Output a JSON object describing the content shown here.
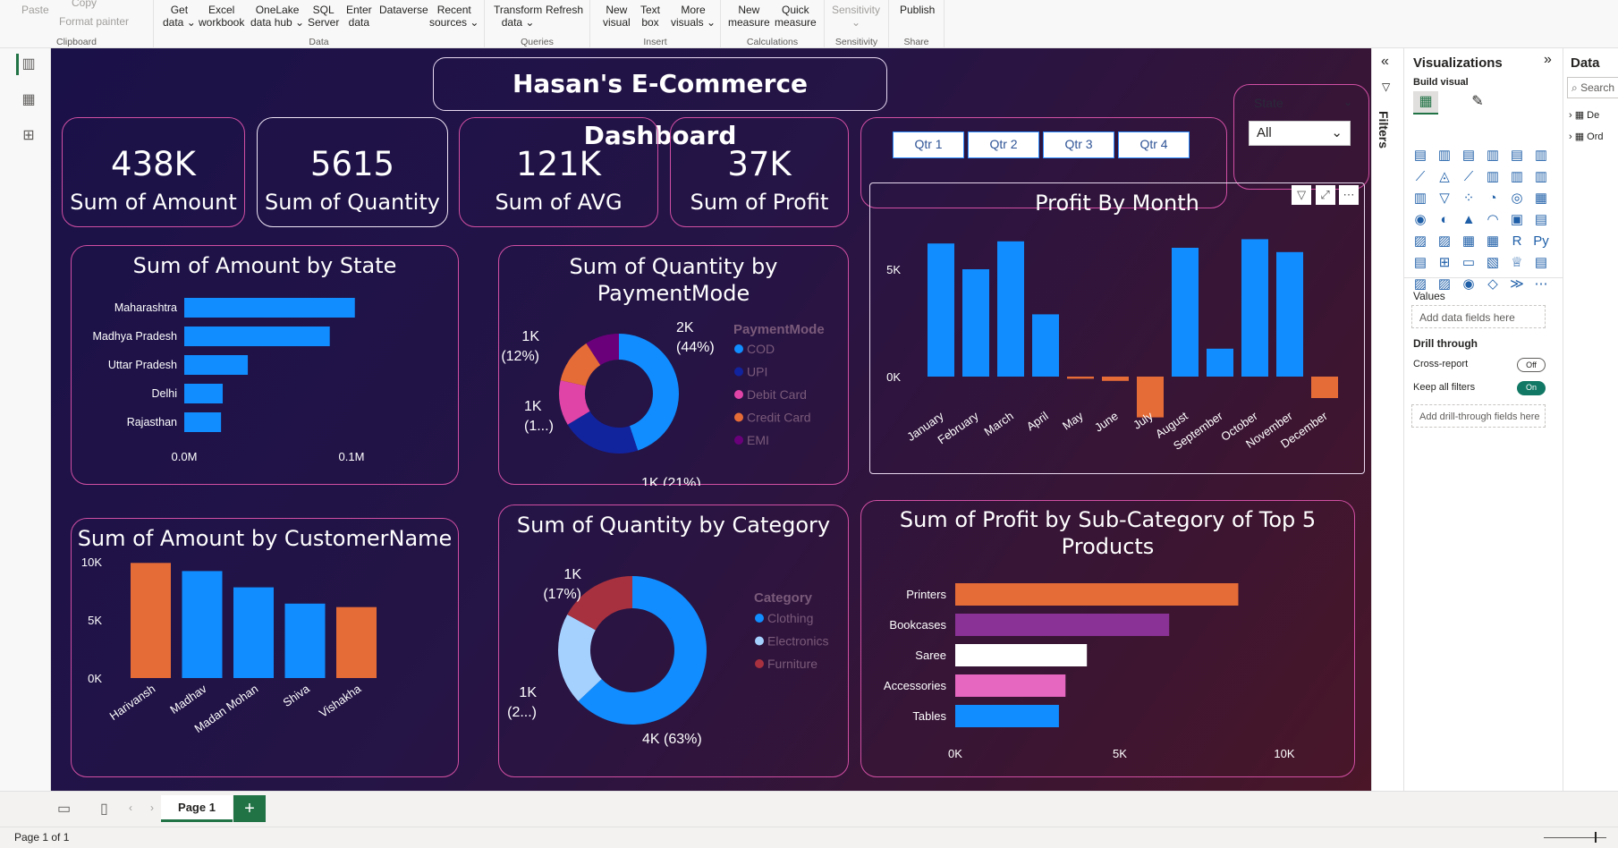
{
  "ribbon": {
    "groups": [
      {
        "label": "Clipboard",
        "buttons": [
          "Paste",
          "Copy",
          "Format painter"
        ]
      },
      {
        "label": "Data",
        "buttons": [
          "Get\ndata ⌄",
          "Excel\nworkbook",
          "OneLake\ndata hub ⌄",
          "SQL\nServer",
          "Enter\ndata",
          "Dataverse",
          "Recent\nsources ⌄"
        ]
      },
      {
        "label": "Queries",
        "buttons": [
          "Transform\ndata ⌄",
          "Refresh"
        ]
      },
      {
        "label": "Insert",
        "buttons": [
          "New\nvisual",
          "Text\nbox",
          "More\nvisuals ⌄"
        ]
      },
      {
        "label": "Calculations",
        "buttons": [
          "New\nmeasure",
          "Quick\nmeasure"
        ]
      },
      {
        "label": "Sensitivity",
        "buttons": [
          "Sensitivity\n⌄"
        ]
      },
      {
        "label": "Share",
        "buttons": [
          "Publish"
        ]
      }
    ]
  },
  "dashboard": {
    "title": "Hasan's E-Commerce Dashboard",
    "kpis": [
      {
        "value": "438K",
        "label": "Sum of Amount"
      },
      {
        "value": "5615",
        "label": "Sum of Quantity"
      },
      {
        "value": "121K",
        "label": "Sum of AVG"
      },
      {
        "value": "37K",
        "label": "Sum of Profit"
      }
    ],
    "quarters": [
      "Qtr 1",
      "Qtr 2",
      "Qtr 3",
      "Qtr 4"
    ],
    "state_slicer": {
      "label": "State",
      "selected": "All"
    }
  },
  "chart_data": [
    {
      "type": "bar",
      "orientation": "horizontal",
      "title": "Sum of Amount by State",
      "categories": [
        "Maharashtra",
        "Madhya Pradesh",
        "Uttar Pradesh",
        "Delhi",
        "Rajasthan"
      ],
      "values": [
        0.102,
        0.087,
        0.038,
        0.023,
        0.022
      ],
      "xticks": [
        "0.0M",
        "0.1M"
      ],
      "color": "#118dff"
    },
    {
      "type": "pie",
      "variant": "donut",
      "title": "Sum of Quantity by PaymentMode",
      "legend_title": "PaymentMode",
      "categories": [
        "COD",
        "UPI",
        "Debit Card",
        "Credit Card",
        "EMI"
      ],
      "values": [
        44,
        21,
        12,
        12,
        9
      ],
      "colors": [
        "#118dff",
        "#12239e",
        "#e044a7",
        "#e66c37",
        "#6b007b"
      ],
      "labels": [
        "2K\n(44%)",
        "1K (21%)",
        "1K\n(1...)",
        "1K\n(12%)"
      ]
    },
    {
      "type": "bar",
      "title": "Profit By Month",
      "categories": [
        "January",
        "February",
        "March",
        "April",
        "May",
        "June",
        "July",
        "August",
        "September",
        "October",
        "November",
        "December"
      ],
      "values": [
        6200,
        5000,
        6300,
        2900,
        -100,
        -200,
        -1900,
        6000,
        1300,
        6400,
        5800,
        -1000
      ],
      "ylim": [
        -2500,
        8000
      ],
      "yticks": [
        "5K",
        "0K"
      ],
      "colors": {
        "positive": "#118dff",
        "negative": "#e66c37"
      }
    },
    {
      "type": "bar",
      "title": "Sum of Amount by CustomerName",
      "categories": [
        "Harivansh",
        "Madhav",
        "Madan Mohan",
        "Shiva",
        "Vishakha"
      ],
      "values": [
        9900,
        9200,
        7800,
        6400,
        6100
      ],
      "ylim": [
        0,
        10000
      ],
      "yticks": [
        "10K",
        "5K",
        "0K"
      ],
      "colors": [
        "#e66c37",
        "#118dff",
        "#118dff",
        "#118dff",
        "#e66c37"
      ]
    },
    {
      "type": "pie",
      "variant": "donut",
      "title": "Sum of Quantity by Category",
      "legend_title": "Category",
      "categories": [
        "Clothing",
        "Electronics",
        "Furniture"
      ],
      "values": [
        63,
        20,
        17
      ],
      "colors": [
        "#118dff",
        "#a5d1ff",
        "#a8313f"
      ],
      "labels": [
        "4K (63%)",
        "1K\n(2...)",
        "1K\n(17%)"
      ]
    },
    {
      "type": "bar",
      "orientation": "horizontal",
      "title": "Sum of Profit by Sub-Category of Top 5 Products",
      "categories": [
        "Printers",
        "Bookcases",
        "Saree",
        "Accessories",
        "Tables"
      ],
      "values": [
        8600,
        6500,
        4000,
        3350,
        3150
      ],
      "xlim": [
        0,
        10000
      ],
      "xticks": [
        "0K",
        "5K",
        "10K"
      ],
      "colors": [
        "#e66c37",
        "#8a3296",
        "#ffffff",
        "#e667c0",
        "#118dff"
      ]
    }
  ],
  "pages": {
    "active": "Page 1",
    "status": "Page 1 of 1"
  },
  "panes": {
    "filters_label": "Filters",
    "visualizations": {
      "title": "Visualizations",
      "build_label": "Build visual",
      "values_label": "Values",
      "values_placeholder": "Add data fields here",
      "drill_title": "Drill through",
      "cross_report": "Cross-report",
      "cross_report_state": "Off",
      "keep_filters": "Keep all filters",
      "keep_filters_state": "On",
      "drill_placeholder": "Add drill-through fields here"
    },
    "data": {
      "title": "Data",
      "search_placeholder": "Search",
      "tables": [
        "De",
        "Ord"
      ]
    }
  }
}
